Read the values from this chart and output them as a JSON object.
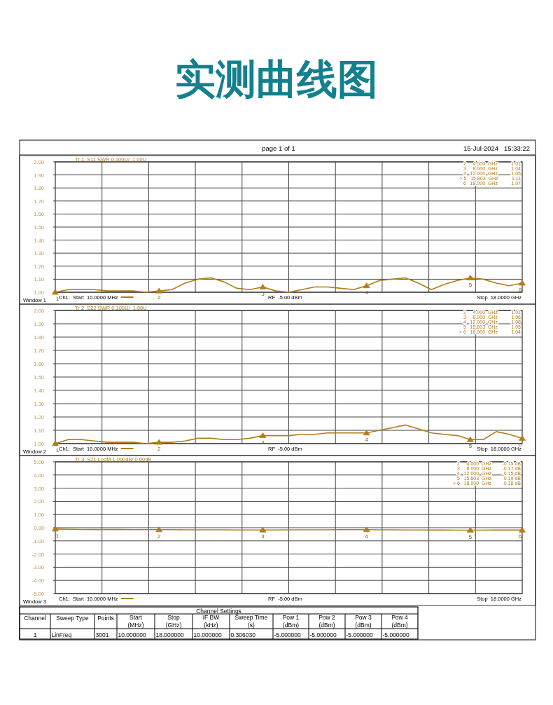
{
  "chart_data": [
    {
      "type": "other",
      "title": "实测曲线图",
      "annotations": [
        "page 1 of 1",
        "15-Jul-2024   15:33:22"
      ]
    },
    {
      "type": "line",
      "title": "Tr 1  S11 SWR 0.100U/  1.00U",
      "ylim": [
        1,
        2
      ],
      "tick_labels": "y",
      "grid": true,
      "categories": [
        null,
        null,
        null,
        null,
        null,
        null,
        null,
        null,
        null,
        null,
        null,
        null,
        null,
        null,
        null,
        null,
        null,
        null,
        null,
        null,
        null,
        null,
        null,
        null,
        null,
        null,
        null,
        null,
        null,
        null,
        null,
        null,
        null,
        null,
        null,
        null,
        null
      ],
      "yticks": [
        {
          "value": 1,
          "label": "1.00"
        },
        {
          "value": 1.1,
          "label": "1.10"
        },
        {
          "value": 1.2,
          "label": "1.20"
        },
        {
          "value": 1.3,
          "label": "1.30"
        },
        {
          "value": 1.4,
          "label": "1.40"
        },
        {
          "value": 1.5,
          "label": "1.50"
        },
        {
          "value": 1.6,
          "label": "1.60"
        },
        {
          "value": 1.7,
          "label": "1.70"
        },
        {
          "value": 1.8,
          "label": "1.80"
        },
        {
          "value": 1.9,
          "label": "1.90"
        },
        {
          "value": 2,
          "label": "2.00"
        }
      ],
      "series": [
        {
          "type": "line",
          "color": "#b07d1a",
          "values": [
            1.0,
            1.02,
            1.02,
            1.02,
            1.01,
            1.01,
            1.01,
            1.0,
            1.01,
            1.02,
            1.07,
            1.1,
            1.11,
            1.08,
            1.03,
            1.02,
            1.04,
            1.01,
            1.0,
            1.02,
            1.04,
            1.04,
            1.03,
            1.02,
            1.05,
            1.09,
            1.1,
            1.11,
            1.07,
            1.02,
            1.06,
            1.09,
            1.11,
            1.1,
            1.07,
            1.05,
            1.07
          ]
        },
        {
          "type": "scatter",
          "color": "#b07d1a",
          "marker": "triangle",
          "values": [
            1.0,
            null,
            null,
            null,
            null,
            null,
            null,
            null,
            1.01,
            null,
            null,
            null,
            null,
            null,
            null,
            null,
            1.04,
            null,
            null,
            null,
            null,
            null,
            null,
            null,
            1.05,
            null,
            null,
            null,
            null,
            null,
            null,
            null,
            1.11,
            null,
            null,
            null,
            1.07
          ]
        }
      ],
      "annotations": [
        "Ch1:  Start  10.0000 MHz",
        "RF  -5.00 dBm",
        "Stop  18.0000 GHz",
        "Window 1",
        "2     4.000  GHz          1.01",
        "3     8.000  GHz          1.04",
        "4   12.000  GHz          1.05",
        "> 5   15.803  GHz          1.11",
        "6   18.000  GHz          1.07",
        {
          "text": "1",
          "y": 1.0
        },
        {
          "text": "2",
          "y": 1.01
        },
        {
          "text": "3",
          "y": 1.04
        },
        {
          "text": "4",
          "y": 1.05
        },
        {
          "text": "5",
          "y": 1.11
        },
        {
          "text": "6",
          "y": 1.07
        }
      ]
    },
    {
      "type": "line",
      "title": "Tr 2  S22 SWR 0.100U/  1.00U",
      "ylim": [
        1,
        2
      ],
      "tick_labels": "y",
      "grid": true,
      "categories": [
        null,
        null,
        null,
        null,
        null,
        null,
        null,
        null,
        null,
        null,
        null,
        null,
        null,
        null,
        null,
        null,
        null,
        null,
        null,
        null,
        null,
        null,
        null,
        null,
        null,
        null,
        null,
        null,
        null,
        null,
        null,
        null,
        null,
        null,
        null,
        null,
        null
      ],
      "yticks": [
        {
          "value": 1,
          "label": "1.00"
        },
        {
          "value": 1.1,
          "label": "1.10"
        },
        {
          "value": 1.2,
          "label": "1.20"
        },
        {
          "value": 1.3,
          "label": "1.30"
        },
        {
          "value": 1.4,
          "label": "1.40"
        },
        {
          "value": 1.5,
          "label": "1.50"
        },
        {
          "value": 1.6,
          "label": "1.60"
        },
        {
          "value": 1.7,
          "label": "1.70"
        },
        {
          "value": 1.8,
          "label": "1.80"
        },
        {
          "value": 1.9,
          "label": "1.90"
        },
        {
          "value": 2,
          "label": "2.00"
        }
      ],
      "series": [
        {
          "type": "line",
          "color": "#b07d1a",
          "values": [
            1.0,
            1.03,
            1.03,
            1.02,
            1.01,
            1.01,
            1.01,
            1.0,
            1.01,
            1.01,
            1.02,
            1.04,
            1.04,
            1.03,
            1.03,
            1.04,
            1.06,
            1.06,
            1.06,
            1.07,
            1.07,
            1.08,
            1.08,
            1.08,
            1.08,
            1.1,
            1.12,
            1.14,
            1.11,
            1.08,
            1.07,
            1.06,
            1.03,
            1.03,
            1.09,
            1.07,
            1.04
          ]
        },
        {
          "type": "scatter",
          "color": "#b07d1a",
          "marker": "triangle",
          "values": [
            1.0,
            null,
            null,
            null,
            null,
            null,
            null,
            null,
            1.01,
            null,
            null,
            null,
            null,
            null,
            null,
            null,
            1.06,
            null,
            null,
            null,
            null,
            null,
            null,
            null,
            1.08,
            null,
            null,
            null,
            null,
            null,
            null,
            null,
            1.03,
            null,
            null,
            null,
            1.04
          ]
        }
      ],
      "annotations": [
        "Ch1:  Start  10.0000 MHz",
        "RF  -5.00 dBm",
        "Stop  18.0000 GHz",
        "Window 2",
        "2     4.000  GHz          1.01",
        "3     8.000  GHz          1.06",
        "4   12.000  GHz          1.08",
        "5   15.803  GHz          1.05",
        "> 6   18.000  GHz          1.04",
        {
          "text": "1",
          "y": 1.0
        },
        {
          "text": "2",
          "y": 1.01
        },
        {
          "text": "3",
          "y": 1.06
        },
        {
          "text": "4",
          "y": 1.08
        },
        {
          "text": "5",
          "y": 1.03
        },
        {
          "text": "6",
          "y": 1.04
        }
      ]
    },
    {
      "type": "line",
      "title": "Tr 3  S21 LogM 1.000dB/ 0.00dB",
      "ylim": [
        -5,
        5
      ],
      "tick_labels": "y",
      "grid": true,
      "categories": [
        null,
        null,
        null,
        null,
        null,
        null,
        null,
        null,
        null,
        null,
        null,
        null,
        null,
        null,
        null,
        null,
        null,
        null,
        null,
        null,
        null,
        null,
        null,
        null,
        null,
        null,
        null,
        null,
        null,
        null,
        null,
        null,
        null,
        null,
        null,
        null,
        null
      ],
      "yticks": [
        {
          "value": -5,
          "label": "-5.00"
        },
        {
          "value": -4,
          "label": "-4.00"
        },
        {
          "value": -3,
          "label": "-3.00"
        },
        {
          "value": -2,
          "label": "-2.00"
        },
        {
          "value": -1,
          "label": "-1.00"
        },
        {
          "value": 0,
          "label": "0.00"
        },
        {
          "value": 1,
          "label": "1.00"
        },
        {
          "value": 2,
          "label": "2.00"
        },
        {
          "value": 3,
          "label": "3.00"
        },
        {
          "value": 4,
          "label": "4.00"
        },
        {
          "value": 5,
          "label": "5.00"
        }
      ],
      "series": [
        {
          "type": "line",
          "color": "#b07d1a",
          "values": [
            -0.1,
            -0.12,
            -0.13,
            -0.14,
            -0.14,
            -0.14,
            -0.15,
            -0.15,
            -0.15,
            -0.15,
            -0.16,
            -0.16,
            -0.16,
            -0.16,
            -0.17,
            -0.17,
            -0.17,
            -0.17,
            -0.16,
            -0.16,
            -0.16,
            -0.16,
            -0.15,
            -0.15,
            -0.15,
            -0.16,
            -0.16,
            -0.17,
            -0.17,
            -0.18,
            -0.18,
            -0.19,
            -0.19,
            -0.19,
            -0.18,
            -0.18,
            -0.18
          ]
        },
        {
          "type": "scatter",
          "color": "#b07d1a",
          "marker": "triangle",
          "values": [
            -0.1,
            null,
            null,
            null,
            null,
            null,
            null,
            null,
            -0.15,
            null,
            null,
            null,
            null,
            null,
            null,
            null,
            -0.17,
            null,
            null,
            null,
            null,
            null,
            null,
            null,
            -0.15,
            null,
            null,
            null,
            null,
            null,
            null,
            null,
            -0.19,
            null,
            null,
            null,
            -0.18
          ]
        }
      ],
      "annotations": [
        "Ch1:  Start  10.0000 MHz",
        "RF  -5.00 dBm",
        "Stop  18.0000 GHz",
        "Window 3",
        "2     4.000  GHz        -0.15 dB",
        "3     8.000  GHz        -0.17 dB",
        "4   12.000  GHz        -0.15 dB",
        "5   15.803  GHz        -0.19 dB",
        "> 6   18.000  GHz        -0.18 dB",
        {
          "text": "1",
          "y": -0.1
        },
        {
          "text": "2",
          "y": -0.15
        },
        {
          "text": "3",
          "y": -0.17
        },
        {
          "text": "4",
          "y": -0.15
        },
        {
          "text": "5",
          "y": -0.19
        },
        {
          "text": "6",
          "y": -0.18
        }
      ]
    },
    {
      "type": "other",
      "title": "Channel Settings",
      "categories": [
        "Channel",
        "Sweep Type",
        "Points",
        "Start\n(MHz)",
        "Stop\n(GHz)",
        "IF BW\n(kHz)",
        "Sweep Time\n(s)",
        "Pow 1\n(dBm)",
        "Pow 2\n(dBm)",
        "Pow 3\n(dBm)",
        "Pow 4\n(dBm)"
      ],
      "annotations": [
        "1",
        "LinFreq",
        "3001",
        "10.000000",
        "18.000000",
        "10.000000",
        "0.306030",
        "-5.000000",
        "-5.000000",
        "-5.000000",
        "-5.000000"
      ]
    }
  ]
}
